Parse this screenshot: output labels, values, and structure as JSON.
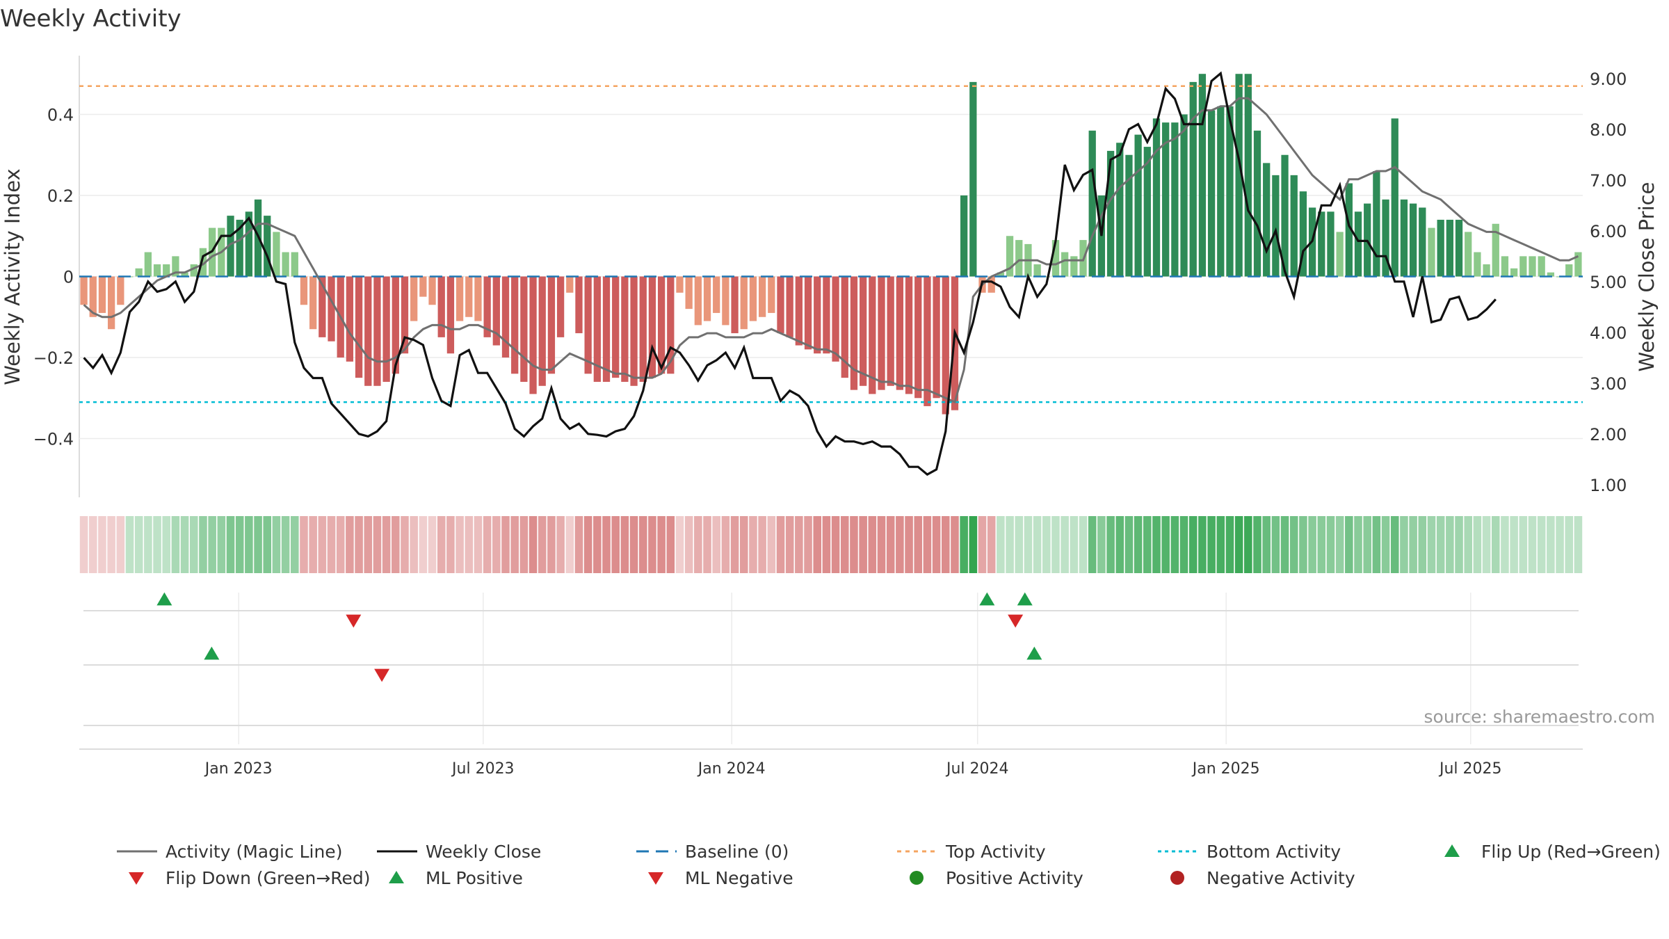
{
  "chart_data": {
    "type": "bar",
    "title": "Weekly Activity",
    "ylabel": "Weekly Activity Index",
    "y2label": "Weekly Close Price",
    "source": "source: sharemaestro.com",
    "ylim": [
      -0.545,
      0.545
    ],
    "y2lim": [
      0.75,
      9.45
    ],
    "yticks": [
      {
        "v": 0.4,
        "label": "0.4"
      },
      {
        "v": 0.2,
        "label": "0.2"
      },
      {
        "v": 0,
        "label": "0"
      },
      {
        "v": -0.2,
        "label": "−0.2"
      },
      {
        "v": -0.4,
        "label": "−0.4"
      }
    ],
    "y2ticks": [
      "9.00",
      "8.00",
      "7.00",
      "6.00",
      "5.00",
      "4.00",
      "3.00",
      "2.00",
      "1.00"
    ],
    "top_activity": 0.47,
    "bottom_activity": -0.31,
    "x_start": "2022-09-05",
    "x_end": "2025-09-22",
    "xticks": [
      {
        "date": "2023-01-01",
        "label": "Jan 2023"
      },
      {
        "date": "2023-07-01",
        "label": "Jul 2023"
      },
      {
        "date": "2024-01-01",
        "label": "Jan 2024"
      },
      {
        "date": "2024-07-01",
        "label": "Jul 2024"
      },
      {
        "date": "2025-01-01",
        "label": "Jan 2025"
      },
      {
        "date": "2025-07-01",
        "label": "Jul 2025"
      }
    ],
    "activity": [
      -0.07,
      -0.1,
      -0.09,
      -0.13,
      -0.07,
      0.0,
      0.02,
      0.06,
      0.03,
      0.03,
      0.05,
      0.01,
      0.03,
      0.07,
      0.12,
      0.12,
      0.15,
      0.14,
      0.16,
      0.19,
      0.15,
      0.11,
      0.06,
      0.06,
      -0.07,
      -0.13,
      -0.15,
      -0.16,
      -0.2,
      -0.21,
      -0.25,
      -0.27,
      -0.27,
      -0.26,
      -0.24,
      -0.19,
      -0.11,
      -0.05,
      -0.07,
      -0.15,
      -0.19,
      -0.11,
      -0.1,
      -0.11,
      -0.15,
      -0.17,
      -0.2,
      -0.24,
      -0.26,
      -0.29,
      -0.27,
      -0.24,
      -0.15,
      -0.04,
      -0.14,
      -0.24,
      -0.26,
      -0.26,
      -0.25,
      -0.26,
      -0.27,
      -0.26,
      -0.25,
      -0.24,
      -0.24,
      -0.04,
      -0.08,
      -0.12,
      -0.11,
      -0.09,
      -0.12,
      -0.14,
      -0.13,
      -0.11,
      -0.1,
      -0.09,
      -0.14,
      -0.15,
      -0.17,
      -0.18,
      -0.19,
      -0.19,
      -0.21,
      -0.25,
      -0.28,
      -0.27,
      -0.29,
      -0.28,
      -0.27,
      -0.28,
      -0.29,
      -0.3,
      -0.32,
      -0.3,
      -0.34,
      -0.33,
      0.2,
      0.48,
      -0.04,
      -0.04,
      0.01,
      0.1,
      0.09,
      0.08,
      0.03,
      0.0,
      0.09,
      0.06,
      0.05,
      0.09,
      0.36,
      0.2,
      0.31,
      0.33,
      0.3,
      0.35,
      0.32,
      0.39,
      0.38,
      0.38,
      0.4,
      0.48,
      0.5,
      0.41,
      0.42,
      0.42,
      0.5,
      0.5,
      0.36,
      0.28,
      0.25,
      0.3,
      0.25,
      0.21,
      0.17,
      0.16,
      0.16,
      0.11,
      0.23,
      0.16,
      0.18,
      0.26,
      0.19,
      0.39,
      0.19,
      0.18,
      0.17,
      0.12,
      0.14,
      0.14,
      0.14,
      0.11,
      0.06,
      0.03,
      0.13,
      0.05,
      0.02,
      0.05,
      0.05,
      0.05,
      0.01,
      0.0,
      0.03,
      0.06
    ],
    "weekly_close": [
      3.5,
      3.3,
      3.55,
      3.2,
      3.6,
      4.4,
      4.6,
      5.0,
      4.8,
      4.85,
      5.0,
      4.6,
      4.8,
      5.5,
      5.6,
      5.9,
      5.9,
      6.05,
      6.25,
      5.9,
      5.5,
      5.0,
      4.95,
      3.8,
      3.3,
      3.1,
      3.1,
      2.6,
      2.4,
      2.2,
      2.0,
      1.95,
      2.05,
      2.25,
      3.35,
      3.9,
      3.85,
      3.75,
      3.1,
      2.65,
      2.55,
      3.55,
      3.65,
      3.2,
      3.2,
      2.9,
      2.6,
      2.1,
      1.95,
      2.15,
      2.3,
      2.9,
      2.3,
      2.1,
      2.2,
      2.0,
      1.98,
      1.95,
      2.05,
      2.1,
      2.35,
      2.85,
      3.7,
      3.3,
      3.7,
      3.6,
      3.35,
      3.05,
      3.35,
      3.45,
      3.6,
      3.3,
      3.7,
      3.1,
      3.1,
      3.1,
      2.65,
      2.85,
      2.75,
      2.55,
      2.05,
      1.75,
      1.95,
      1.85,
      1.85,
      1.8,
      1.85,
      1.75,
      1.75,
      1.6,
      1.35,
      1.35,
      1.2,
      1.3,
      2.05,
      4.0,
      3.6,
      4.2,
      5.0,
      5.0,
      4.9,
      4.5,
      4.3,
      5.1,
      4.7,
      4.95,
      5.8,
      7.3,
      6.8,
      7.1,
      7.2,
      5.9,
      7.4,
      7.5,
      8.0,
      8.1,
      7.75,
      8.1,
      8.8,
      8.6,
      8.1,
      8.1,
      8.1,
      8.95,
      9.1,
      8.2,
      7.4,
      6.4,
      6.1,
      5.6,
      6.0,
      5.2,
      4.7,
      5.6,
      5.8,
      6.5,
      6.5,
      6.9,
      6.1,
      5.8,
      5.8,
      5.5,
      5.5,
      5.0,
      5.0,
      4.3,
      5.1,
      4.2,
      4.25,
      4.65,
      4.7,
      4.25,
      4.3,
      4.45,
      4.65
    ],
    "magic_line": [
      -0.07,
      -0.09,
      -0.1,
      -0.1,
      -0.09,
      -0.07,
      -0.05,
      -0.03,
      -0.01,
      0.0,
      0.01,
      0.01,
      0.02,
      0.03,
      0.05,
      0.06,
      0.08,
      0.09,
      0.11,
      0.13,
      0.13,
      0.12,
      0.11,
      0.1,
      0.06,
      0.02,
      -0.02,
      -0.06,
      -0.1,
      -0.14,
      -0.17,
      -0.2,
      -0.21,
      -0.21,
      -0.2,
      -0.18,
      -0.15,
      -0.13,
      -0.12,
      -0.12,
      -0.13,
      -0.13,
      -0.12,
      -0.12,
      -0.13,
      -0.14,
      -0.16,
      -0.18,
      -0.2,
      -0.22,
      -0.23,
      -0.23,
      -0.21,
      -0.19,
      -0.2,
      -0.21,
      -0.22,
      -0.23,
      -0.24,
      -0.24,
      -0.25,
      -0.25,
      -0.25,
      -0.24,
      -0.21,
      -0.17,
      -0.15,
      -0.15,
      -0.14,
      -0.14,
      -0.15,
      -0.15,
      -0.15,
      -0.14,
      -0.14,
      -0.13,
      -0.14,
      -0.15,
      -0.16,
      -0.17,
      -0.18,
      -0.18,
      -0.19,
      -0.21,
      -0.23,
      -0.24,
      -0.25,
      -0.26,
      -0.26,
      -0.27,
      -0.27,
      -0.28,
      -0.28,
      -0.29,
      -0.3,
      -0.31,
      -0.23,
      -0.05,
      -0.02,
      0.0,
      0.01,
      0.02,
      0.04,
      0.04,
      0.04,
      0.03,
      0.03,
      0.04,
      0.04,
      0.04,
      0.1,
      0.15,
      0.19,
      0.22,
      0.24,
      0.26,
      0.28,
      0.31,
      0.33,
      0.34,
      0.36,
      0.39,
      0.41,
      0.41,
      0.42,
      0.42,
      0.44,
      0.44,
      0.42,
      0.4,
      0.37,
      0.34,
      0.31,
      0.28,
      0.25,
      0.23,
      0.21,
      0.19,
      0.24,
      0.24,
      0.25,
      0.26,
      0.26,
      0.27,
      0.25,
      0.23,
      0.21,
      0.2,
      0.19,
      0.17,
      0.15,
      0.13,
      0.12,
      0.11,
      0.11,
      0.1,
      0.09,
      0.08,
      0.07,
      0.06,
      0.05,
      0.04,
      0.04,
      0.05
    ],
    "strip_intensity": [
      0.3,
      0.3,
      0.3,
      0.3,
      0.3,
      0.3,
      0.3,
      0.3,
      0.3,
      0.3,
      0.4,
      0.4,
      0.4,
      0.5,
      0.5,
      0.5,
      0.6,
      0.6,
      0.6,
      0.6,
      0.6,
      0.5,
      0.5,
      0.5,
      0.5,
      0.5,
      0.5,
      0.5,
      0.5,
      0.6,
      0.6,
      0.6,
      0.6,
      0.6,
      0.6,
      0.5,
      0.4,
      0.3,
      0.3,
      0.5,
      0.5,
      0.4,
      0.4,
      0.4,
      0.5,
      0.5,
      0.6,
      0.6,
      0.6,
      0.7,
      0.6,
      0.6,
      0.5,
      0.3,
      0.6,
      0.7,
      0.7,
      0.7,
      0.7,
      0.7,
      0.7,
      0.7,
      0.7,
      0.7,
      0.7,
      0.3,
      0.4,
      0.5,
      0.5,
      0.4,
      0.5,
      0.6,
      0.6,
      0.5,
      0.5,
      0.4,
      0.6,
      0.6,
      0.6,
      0.6,
      0.7,
      0.7,
      0.7,
      0.7,
      0.7,
      0.7,
      0.7,
      0.7,
      0.7,
      0.7,
      0.7,
      0.7,
      0.7,
      0.7,
      0.7,
      0.7,
      0.85,
      0.95,
      0.55,
      0.55,
      0.3,
      0.3,
      0.3,
      0.3,
      0.3,
      0.3,
      0.3,
      0.3,
      0.3,
      0.3,
      0.7,
      0.55,
      0.7,
      0.75,
      0.7,
      0.75,
      0.75,
      0.8,
      0.8,
      0.8,
      0.8,
      0.85,
      0.85,
      0.85,
      0.85,
      0.85,
      0.9,
      0.9,
      0.8,
      0.7,
      0.65,
      0.7,
      0.65,
      0.6,
      0.55,
      0.55,
      0.55,
      0.5,
      0.65,
      0.55,
      0.55,
      0.65,
      0.55,
      0.7,
      0.5,
      0.5,
      0.5,
      0.45,
      0.45,
      0.45,
      0.45,
      0.4,
      0.35,
      0.3,
      0.4,
      0.3,
      0.3,
      0.3,
      0.3,
      0.3,
      0.3,
      0.3,
      0.3,
      0.3
    ],
    "flip_up_dates": [
      "2022-11-07",
      "2024-07-08",
      "2024-08-05"
    ],
    "flip_down_dates": [
      "2023-03-27",
      "2024-07-29"
    ],
    "ml_positive_dates": [
      "2022-12-12",
      "2024-08-12"
    ],
    "ml_negative_dates": [
      "2023-04-17"
    ],
    "legend": [
      {
        "key": "magic",
        "label": "Activity (Magic Line)"
      },
      {
        "key": "close",
        "label": "Weekly Close"
      },
      {
        "key": "baseline",
        "label": "Baseline (0)"
      },
      {
        "key": "top",
        "label": "Top Activity"
      },
      {
        "key": "bottom",
        "label": "Bottom Activity"
      },
      {
        "key": "flipup",
        "label": "Flip Up (Red→Green)"
      },
      {
        "key": "flipdown",
        "label": "Flip Down (Green→Red)"
      },
      {
        "key": "mlpos",
        "label": "ML Positive"
      },
      {
        "key": "mlneg",
        "label": "ML Negative"
      },
      {
        "key": "posact",
        "label": "Positive Activity"
      },
      {
        "key": "negact",
        "label": "Negative Activity"
      }
    ],
    "colors": {
      "pos_dark": "#2e8b57",
      "pos_light": "#8cc98a",
      "neg_dark": "#cd5c5c",
      "neg_light": "#e9967a",
      "magic": "#707070",
      "close": "#111111",
      "baseline": "#1f77b4",
      "top": "#f4a460",
      "bottom": "#00bcd4",
      "up_marker": "#1e9e4a",
      "down_marker": "#d62728",
      "pos_dot": "#228b22",
      "neg_dot": "#b22222"
    }
  }
}
